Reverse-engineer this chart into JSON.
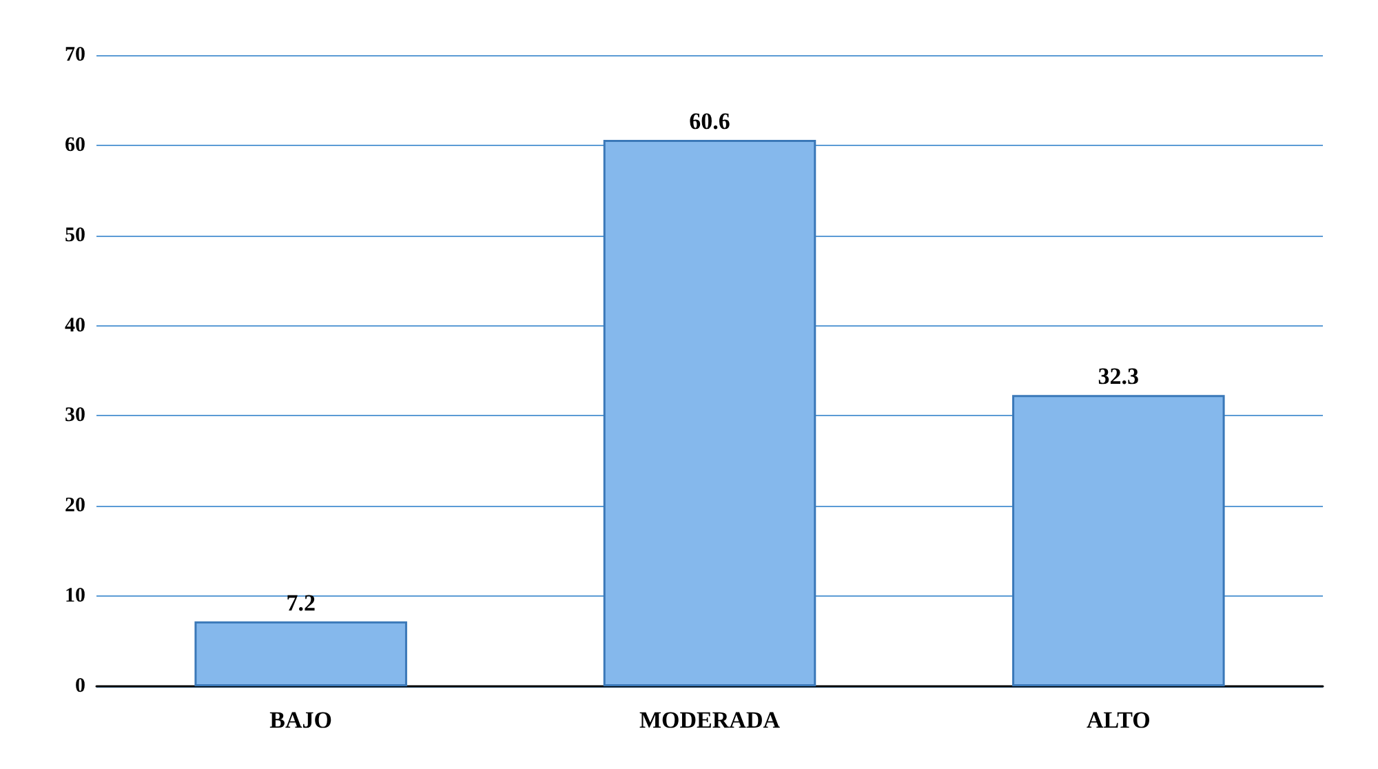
{
  "chart_data": {
    "type": "bar",
    "categories": [
      "BAJO",
      "MODERADA",
      "ALTO"
    ],
    "values": [
      7.2,
      60.6,
      32.3
    ],
    "color": "#85b8ec",
    "ylim": [
      0,
      70
    ],
    "yticks": [
      0,
      10,
      20,
      30,
      40,
      50,
      60,
      70
    ],
    "grid": "y",
    "data_labels": true
  }
}
